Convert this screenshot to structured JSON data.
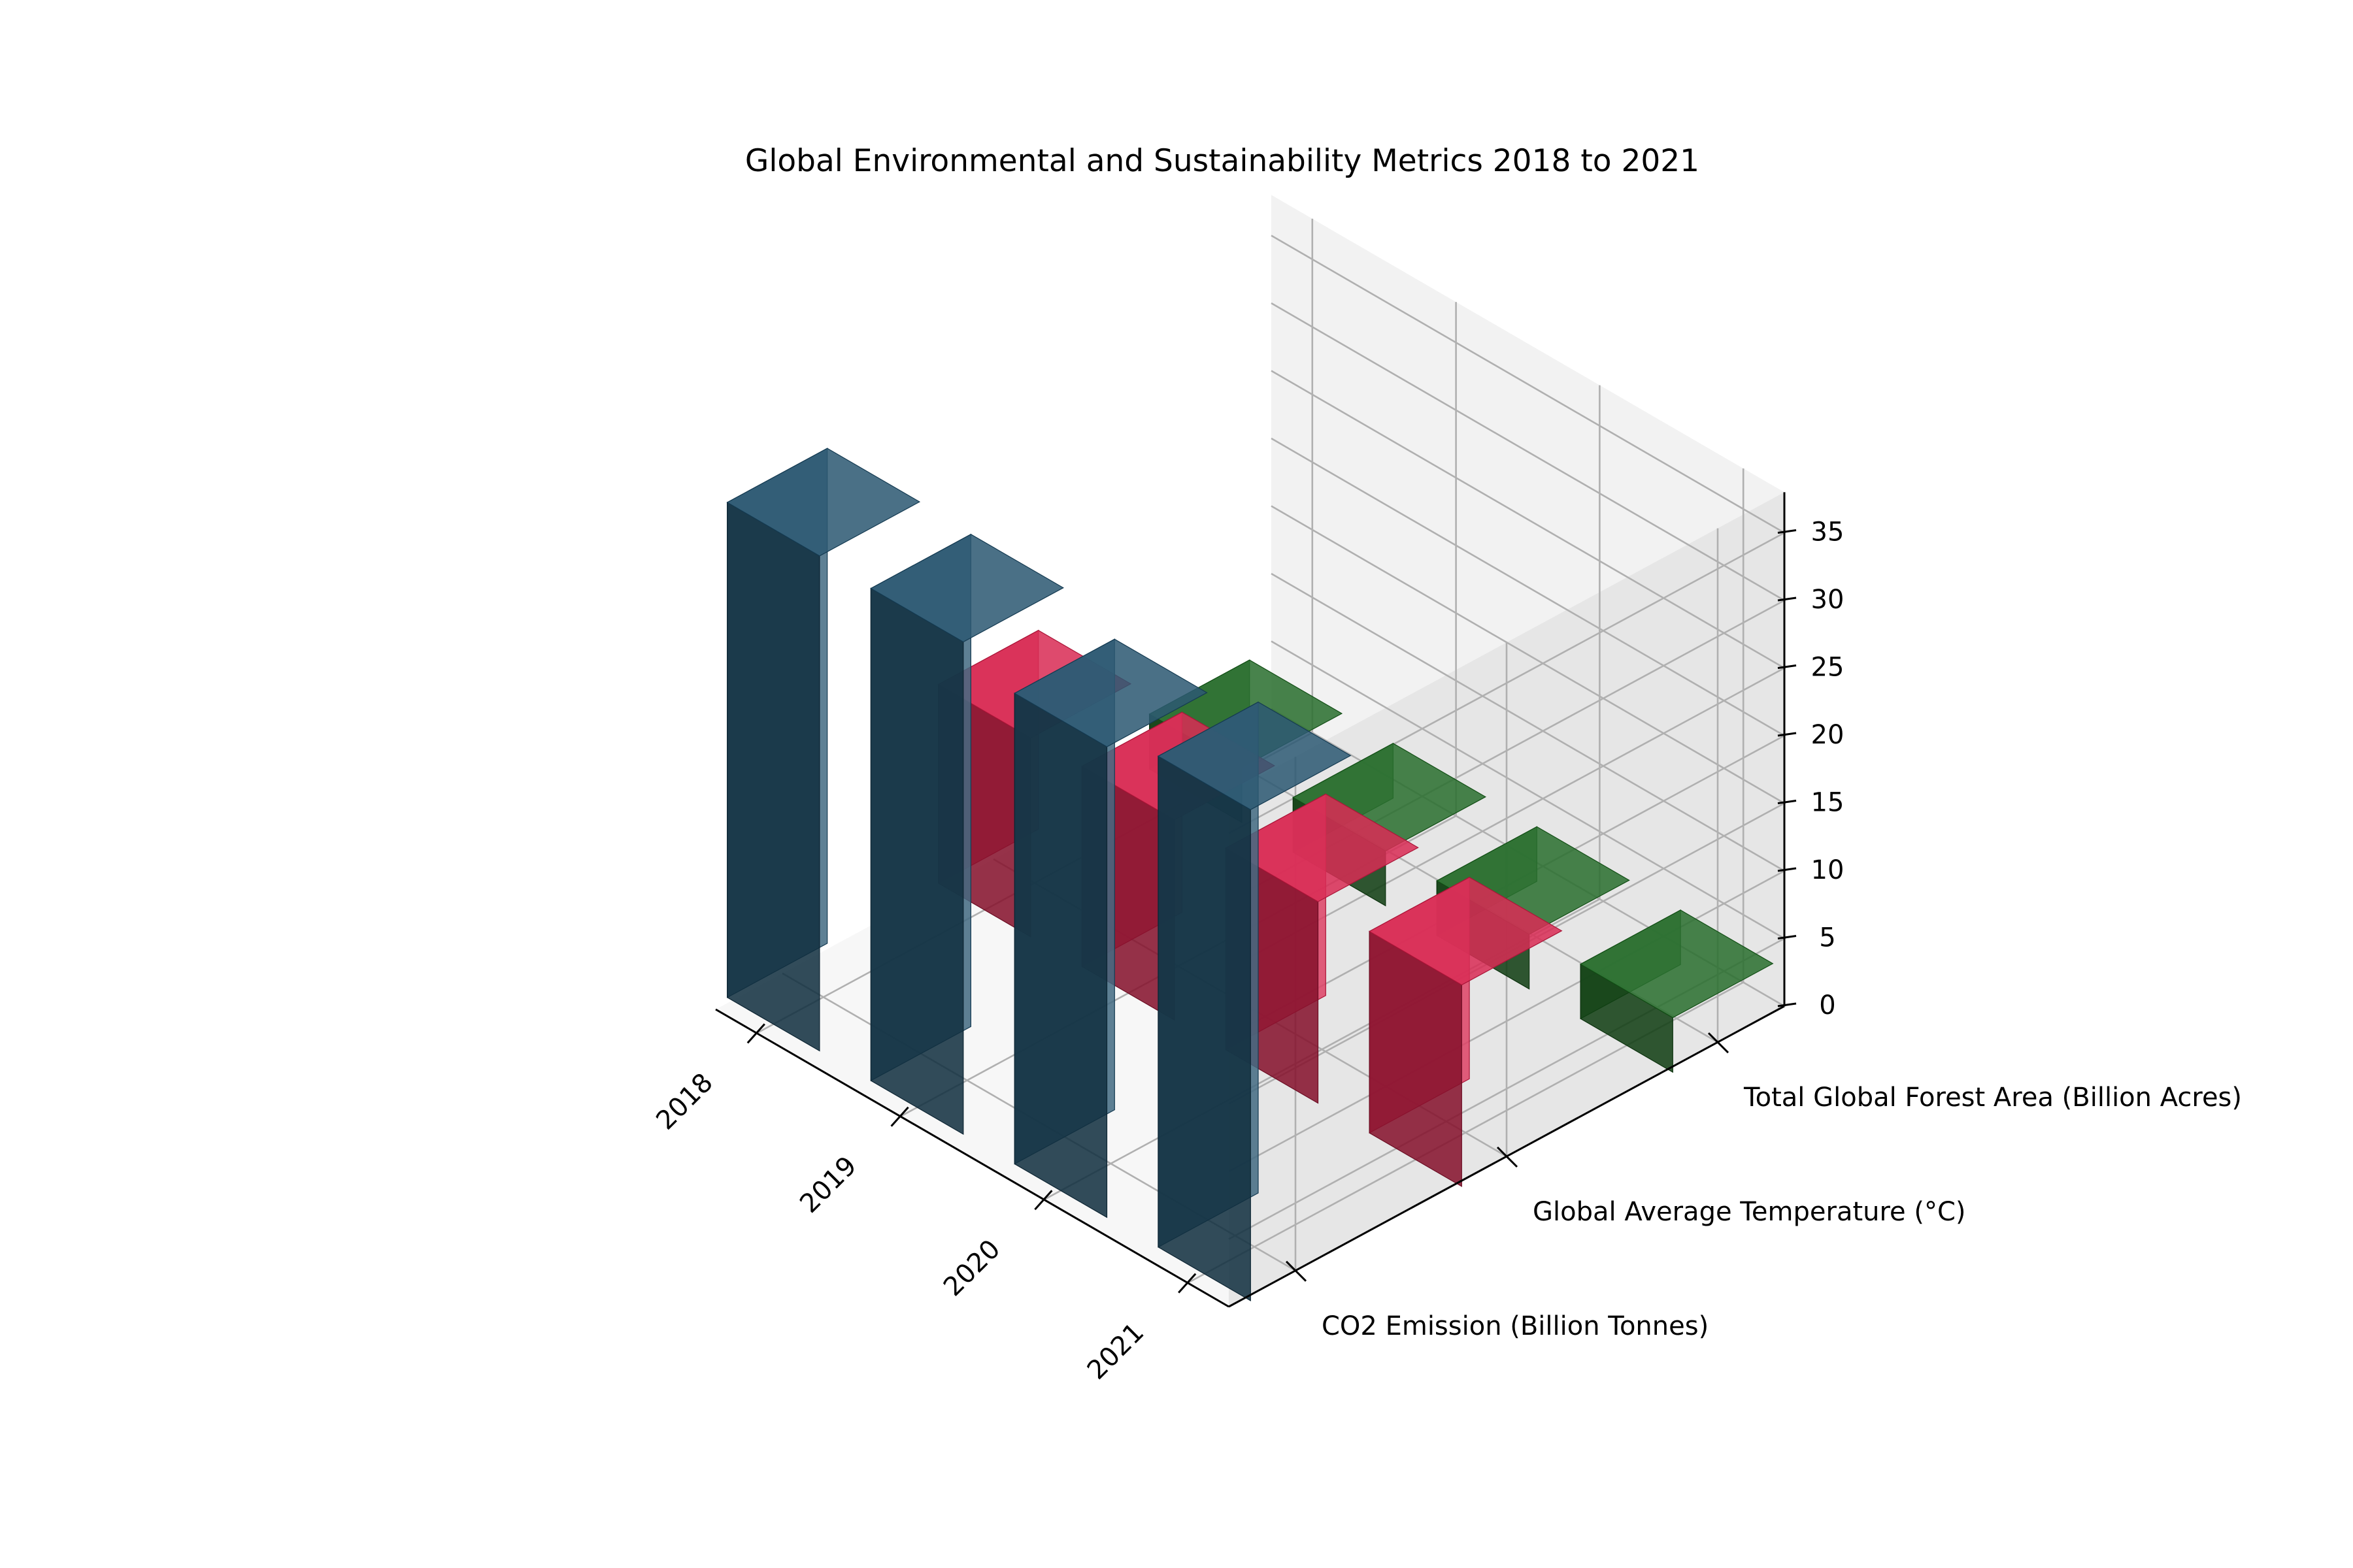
{
  "chart_data": {
    "type": "bar3d",
    "title": "Global Environmental and Sustainability Metrics 2018 to 2021",
    "categories": [
      "2018",
      "2019",
      "2020",
      "2021"
    ],
    "series": [
      {
        "name": "CO2 Emission (Billion Tonnes)",
        "values": [
          36.6,
          36.4,
          34.8,
          36.3
        ],
        "color": "#1a4a66"
      },
      {
        "name": "Global Average Temperature (°C)",
        "values": [
          14.7,
          14.8,
          14.9,
          14.9
        ],
        "color": "#d61a46"
      },
      {
        "name": "Total Global Forest Area (Billion Acres)",
        "values": [
          4.06,
          4.05,
          4.04,
          4.03
        ],
        "color": "#18631c"
      }
    ],
    "zlim": [
      0,
      38
    ],
    "zticks": [
      0,
      5,
      10,
      15,
      20,
      25,
      30,
      35
    ],
    "grid": true,
    "pane_colors": {
      "left": "#f2f2f2",
      "right": "#e6e6e6",
      "floor": "#f7f7f7"
    }
  }
}
